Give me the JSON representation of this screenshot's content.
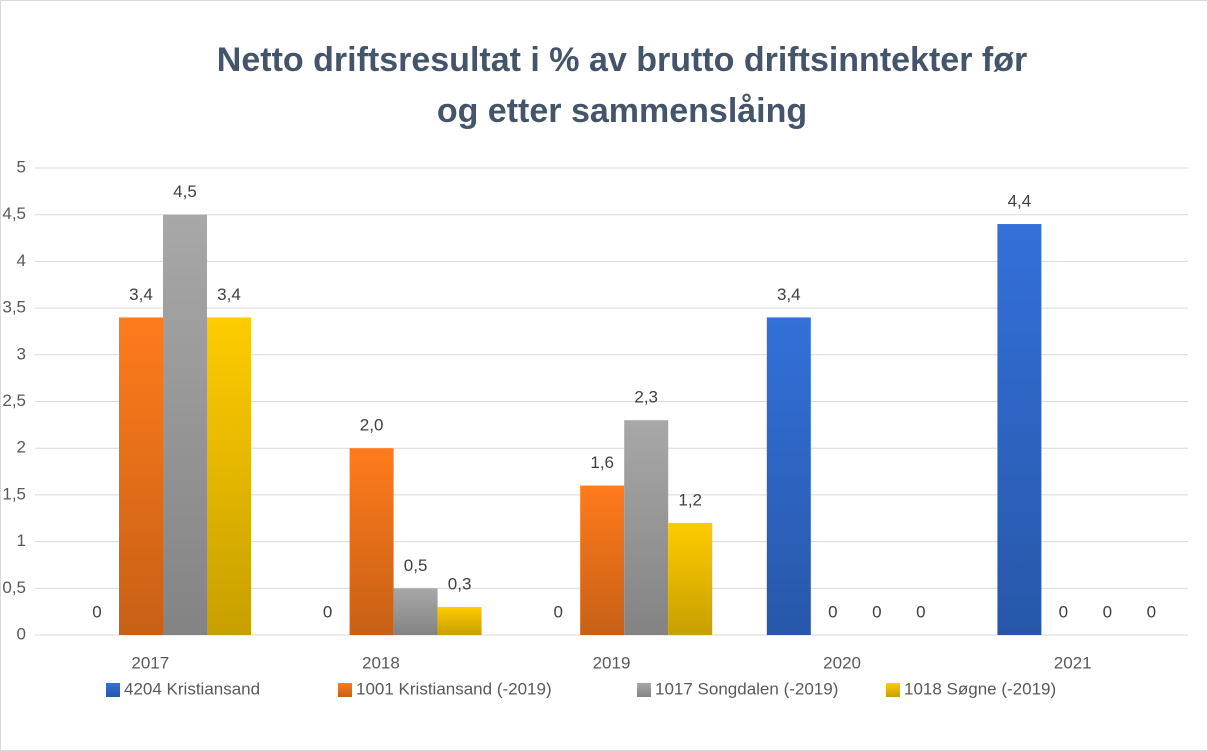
{
  "chart_data": {
    "type": "bar",
    "title_lines": [
      "Netto driftsresultat i % av brutto driftsinntekter før",
      "og etter sammenslåing"
    ],
    "categories": [
      "2017",
      "2018",
      "2019",
      "2020",
      "2021"
    ],
    "series": [
      {
        "name": "4204 Kristiansand",
        "color": "#3370d9",
        "values": [
          0,
          0,
          0,
          3.4,
          4.4
        ],
        "value_labels": [
          "0",
          "0",
          "0",
          "3,4",
          "4,4"
        ]
      },
      {
        "name": "1001 Kristiansand (-2019)",
        "color": "#ff7b1c",
        "values": [
          3.4,
          2.0,
          1.6,
          0,
          0
        ],
        "value_labels": [
          "3,4",
          "2,0",
          "1,6",
          "0",
          "0"
        ]
      },
      {
        "name": "1017 Songdalen (-2019)",
        "color": "#a8a8a8",
        "values": [
          4.5,
          0.5,
          2.3,
          0,
          0
        ],
        "value_labels": [
          "4,5",
          "0,5",
          "2,3",
          "0",
          "0"
        ]
      },
      {
        "name": "1018 Søgne (-2019)",
        "color": "#ffcc00",
        "values": [
          3.4,
          0.3,
          1.2,
          0,
          0
        ],
        "value_labels": [
          "3,4",
          "0,3",
          "1,2",
          "0",
          "0"
        ]
      }
    ],
    "ylim": [
      0,
      5
    ],
    "yticks": [
      0,
      {
        "value": 0.5,
        "label": "0,5"
      },
      1,
      {
        "value": 1.5,
        "label": "1,5"
      },
      2,
      {
        "value": 2.5,
        "label": "2,5"
      },
      3,
      {
        "value": 3.5,
        "label": "3,5"
      },
      4,
      {
        "value": 4.5,
        "label": "4,5"
      },
      5
    ],
    "grid": true,
    "legend": "bottom"
  }
}
